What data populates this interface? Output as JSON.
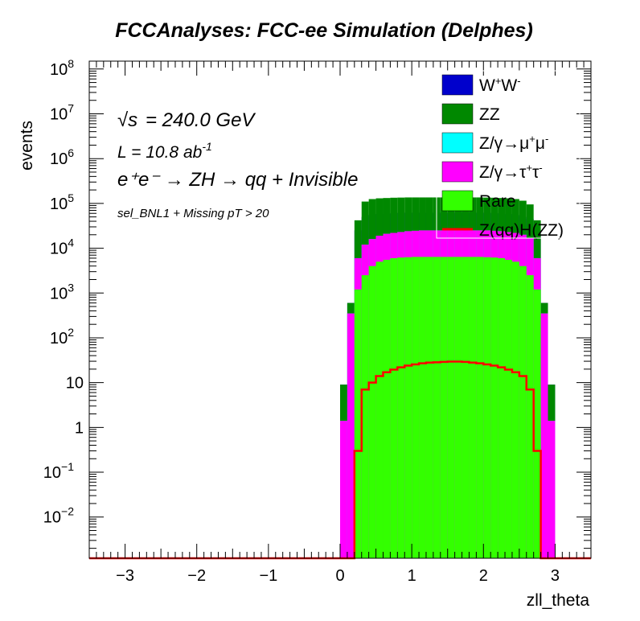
{
  "chart_data": {
    "type": "bar",
    "title": "FCCAnalyses: FCC-ee Simulation (Delphes)",
    "xlabel": "zll_theta",
    "ylabel": "events",
    "xlim": [
      -3.5,
      3.5
    ],
    "ylim": [
      0.0012,
      150000000
    ],
    "y_scale": "log",
    "stacked": true,
    "bins": [
      -3.5,
      0.0,
      0.1,
      0.2,
      0.3,
      0.4,
      0.5,
      0.6,
      0.7,
      0.8,
      0.9,
      1.0,
      1.1,
      1.2,
      1.3,
      1.4,
      1.5,
      1.6,
      1.7,
      1.8,
      1.9,
      2.0,
      2.1,
      2.2,
      2.3,
      2.4,
      2.5,
      2.6,
      2.7,
      2.8,
      2.9,
      3.0,
      3.5
    ],
    "x_ticks": [
      -3,
      -2,
      -1,
      0,
      1,
      2,
      3
    ],
    "x_tick_labels": [
      "−3",
      "−2",
      "−1",
      "0",
      "1",
      "2",
      "3"
    ],
    "y_ticks": [
      {
        "exp": -2,
        "label": "10",
        "sup": "−2"
      },
      {
        "exp": -1,
        "label": "10",
        "sup": "−1"
      },
      {
        "exp": 0,
        "label": "1",
        "sup": ""
      },
      {
        "exp": 1,
        "label": "10",
        "sup": ""
      },
      {
        "exp": 2,
        "label": "10",
        "sup": "2"
      },
      {
        "exp": 3,
        "label": "10",
        "sup": "3"
      },
      {
        "exp": 4,
        "label": "10",
        "sup": "4"
      },
      {
        "exp": 5,
        "label": "10",
        "sup": "5"
      },
      {
        "exp": 6,
        "label": "10",
        "sup": "6"
      },
      {
        "exp": 7,
        "label": "10",
        "sup": "7"
      },
      {
        "exp": 8,
        "label": "10",
        "sup": "8"
      }
    ],
    "stack_cumulative": [
      {
        "name": "W⁺W⁻",
        "color": "#0000cc",
        "values": [
          0,
          9,
          600,
          25000,
          50000,
          55000,
          58000,
          60000,
          61000,
          62000,
          62000,
          62000,
          62000,
          62000,
          62000,
          62000,
          62000,
          62000,
          62000,
          62000,
          62000,
          62000,
          61000,
          60000,
          58000,
          55000,
          50000,
          45000,
          25000,
          600,
          9,
          0
        ]
      },
      {
        "name": "ZZ",
        "color": "#008800",
        "values": [
          0,
          9,
          600,
          42000,
          110000,
          125000,
          130000,
          132000,
          134000,
          135000,
          136000,
          136000,
          136000,
          136000,
          136000,
          136000,
          136000,
          136000,
          136000,
          136000,
          136000,
          135000,
          134000,
          132000,
          130000,
          125000,
          115000,
          95000,
          42000,
          600,
          9,
          0
        ]
      },
      {
        "name": "Z/γ→μ⁺μ⁻",
        "color": "#00ffff",
        "values": [
          0,
          1.4,
          350,
          6000,
          12000,
          16000,
          19000,
          21000,
          22000,
          23000,
          24000,
          24500,
          25000,
          25000,
          25000,
          25000,
          25000,
          25000,
          25000,
          25000,
          25000,
          25000,
          24500,
          24000,
          23000,
          22000,
          20000,
          17000,
          6000,
          350,
          1.4,
          0
        ]
      },
      {
        "name": "Z/γ→τ⁺τ⁻",
        "color": "#ff00ff",
        "values": [
          0,
          1.4,
          350,
          6000,
          12000,
          16000,
          19000,
          21000,
          22000,
          23000,
          24000,
          24500,
          25000,
          25000,
          25000,
          25000,
          25000,
          25000,
          25000,
          25000,
          25000,
          25000,
          24500,
          24000,
          23000,
          22000,
          20000,
          17000,
          6000,
          350,
          1.4,
          0
        ]
      },
      {
        "name": "Rare",
        "color": "#33ff00",
        "values": [
          0,
          0.0012,
          0.0012,
          1200,
          2500,
          4000,
          5000,
          5500,
          6000,
          6200,
          6300,
          6400,
          6400,
          6400,
          6400,
          6400,
          6400,
          6400,
          6400,
          6400,
          6400,
          6300,
          6200,
          6000,
          5500,
          5000,
          4000,
          2500,
          1200,
          0.0012,
          0.0012,
          0
        ]
      }
    ],
    "signal": {
      "name": "Z(qq)H(ZZ)",
      "color": "#ff0000",
      "values": [
        0,
        0.0012,
        0.0012,
        0.3,
        7,
        10,
        14,
        17,
        19.5,
        22,
        24,
        25.5,
        27,
        28,
        28.5,
        29,
        29.5,
        29.5,
        29,
        28,
        27,
        25.5,
        24,
        22,
        19.5,
        17,
        14,
        7,
        0.3,
        0.0012,
        0.0012,
        0
      ]
    },
    "legend": [
      {
        "label": "W",
        "sup1": "+",
        "label2": "W",
        "sup2": "-",
        "color": "#0000cc",
        "type": "box"
      },
      {
        "label": "ZZ",
        "sup1": "",
        "label2": "",
        "sup2": "",
        "color": "#008800",
        "type": "box"
      },
      {
        "label": "Z/γ→μ",
        "sup1": "+",
        "label2": "μ",
        "sup2": "-",
        "color": "#00ffff",
        "type": "box"
      },
      {
        "label": "Z/γ→τ",
        "sup1": "+",
        "label2": "τ",
        "sup2": "-",
        "color": "#ff00ff",
        "type": "box"
      },
      {
        "label": "Rare",
        "sup1": "",
        "label2": "",
        "sup2": "",
        "color": "#33ff00",
        "type": "box"
      },
      {
        "label": "Z(qq)H(ZZ)",
        "sup1": "",
        "label2": "",
        "sup2": "",
        "color": "#ff0000",
        "type": "line"
      }
    ],
    "legend_position": "top-right",
    "annotations": {
      "sqrt_s": "= 240.0 GeV",
      "sqrt_s_symbol": "√s",
      "lumi_prefix": "L = 10.8 ab",
      "lumi_exp": "-1",
      "process": "e⁺e⁻ → ZH → qq + Invisible",
      "selection": "sel_BNL1 + Missing pT > 20"
    }
  }
}
